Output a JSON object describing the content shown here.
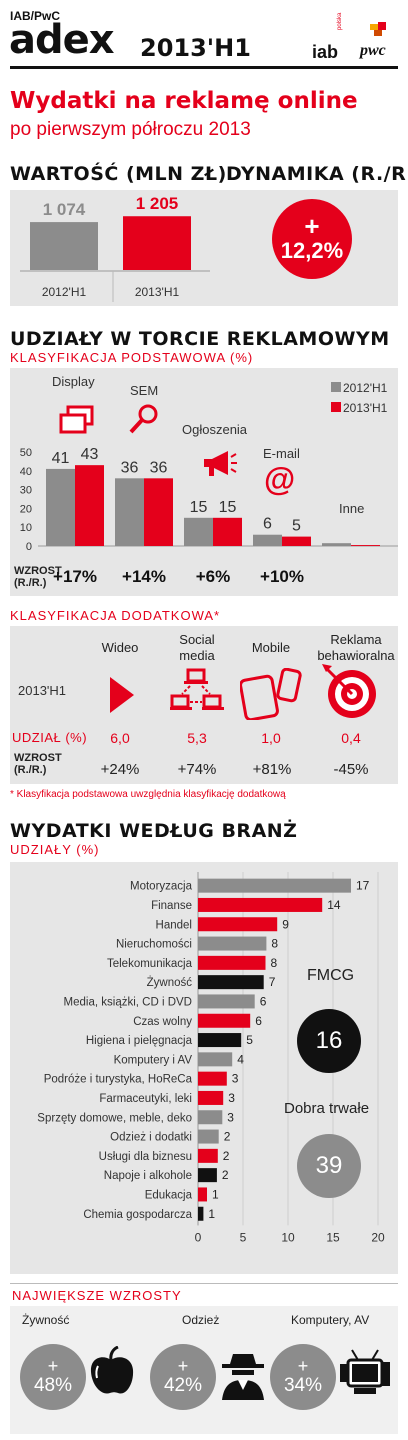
{
  "header": {
    "brand_small": "IAB/PwC",
    "brand_big": "adex",
    "period": "2013'H1",
    "logo_iab": "iab",
    "logo_iab_sub": "polska",
    "logo_pwc": "pwc"
  },
  "title": {
    "line1": "Wydatki na reklamę online",
    "line2": "po pierwszym półroczu 2013"
  },
  "value_section": {
    "title_value": "WARTOŚĆ (MLN ZŁ)",
    "title_dynamics": "DYNAMIKA (R./R.)",
    "bars": [
      {
        "label": "2012'H1",
        "value_text": "1 074",
        "value": 1074
      },
      {
        "label": "2013'H1",
        "value_text": "1 205",
        "value": 1205
      }
    ],
    "dynamics_plus": "+",
    "dynamics_value": "12,2%"
  },
  "shares_section": {
    "title": "UDZIAŁY W TORCIE REKLAMOWYM",
    "subtitle": "KLASYFIKACJA PODSTAWOWA (%)",
    "growth_label_1": "WZROST",
    "growth_label_2": "(R./R.)"
  },
  "additional_section": {
    "subtitle": "KLASYFIKACJA DODATKOWA*",
    "row_label_period": "2013'H1",
    "row_label_share": "UDZIAŁ (%)",
    "row_label_growth_1": "WZROST",
    "row_label_growth_2": "(R./R.)",
    "items": [
      {
        "name": "Wideo",
        "share": "6,0",
        "growth": "+24%"
      },
      {
        "name": "Social media",
        "share": "5,3",
        "growth": "+74%"
      },
      {
        "name": "Mobile",
        "share": "1,0",
        "growth": "+81%"
      },
      {
        "name": "Reklama behawioralna",
        "share": "0,4",
        "growth": "-45%"
      }
    ],
    "footnote": "* Klasyfikacja podstawowa uwzględnia klasyfikację dodatkową"
  },
  "industry_section": {
    "title": "WYDATKI WEDŁUG BRANŻ",
    "subtitle": "UDZIAŁY (%)",
    "fmcg_label": "FMCG",
    "fmcg_value": "16",
    "durables_label": "Dobra trwałe",
    "durables_value": "39"
  },
  "growth_section": {
    "title": "NAJWIĘKSZE WZROSTY",
    "items": [
      {
        "label": "Żywność",
        "plus": "+",
        "value": "48%"
      },
      {
        "label": "Odzież",
        "plus": "+",
        "value": "42%"
      },
      {
        "label": "Komputery, AV",
        "plus": "+",
        "value": "34%"
      }
    ]
  },
  "chart_data": [
    {
      "type": "bar",
      "title": "WARTOŚĆ (MLN ZŁ)",
      "categories": [
        "2012'H1",
        "2013'H1"
      ],
      "values": [
        1074,
        1205
      ],
      "colors": [
        "#8c8c8c",
        "#e4001b"
      ]
    },
    {
      "type": "bar",
      "title": "UDZIAŁY W TORCIE REKLAMOWYM",
      "subtitle": "KLASYFIKACJA PODSTAWOWA (%)",
      "categories": [
        "Display",
        "SEM",
        "Ogłoszenia",
        "E-mail",
        "Inne"
      ],
      "series": [
        {
          "name": "2012'H1",
          "values": [
            41,
            36,
            15,
            6,
            1.5
          ],
          "color": "#8c8c8c"
        },
        {
          "name": "2013'H1",
          "values": [
            43,
            36,
            15,
            5,
            0.5
          ],
          "color": "#e4001b"
        }
      ],
      "value_labels": [
        [
          "41",
          "43"
        ],
        [
          "36",
          "36"
        ],
        [
          "15",
          "15"
        ],
        [
          "6",
          "5"
        ],
        [
          "",
          ""
        ]
      ],
      "growth": [
        "+17%",
        "+14%",
        "+6%",
        "+10%",
        ""
      ],
      "ylim": [
        0,
        50
      ],
      "yticks": [
        0,
        10,
        20,
        30,
        40,
        50
      ],
      "legend": "top-right"
    },
    {
      "type": "bar",
      "orientation": "horizontal",
      "title": "WYDATKI WEDŁUG BRANŻ",
      "subtitle": "UDZIAŁY (%)",
      "categories": [
        "Motoryzacja",
        "Finanse",
        "Handel",
        "Nieruchomości",
        "Telekomunikacja",
        "Żywność",
        "Media, książki, CD i DVD",
        "Czas wolny",
        "Higiena i pielęgnacja",
        "Komputery i AV",
        "Podróże i turystyka, HoReCa",
        "Farmaceutyki, leki",
        "Sprzęty domowe, meble, deko",
        "Odzież i dodatki",
        "Usługi dla biznesu",
        "Napoje i alkohole",
        "Edukacja",
        "Chemia gospodarcza"
      ],
      "values": [
        17,
        14,
        9,
        8,
        8,
        7,
        6,
        6,
        5,
        4,
        3,
        3,
        3,
        2,
        2,
        2,
        1,
        1
      ],
      "bar_values": [
        17,
        13.8,
        8.8,
        7.6,
        7.5,
        7.3,
        6.3,
        5.8,
        4.8,
        3.8,
        3.2,
        2.8,
        2.7,
        2.3,
        2.2,
        2.1,
        1.0,
        0.6
      ],
      "colors": [
        "#8c8c8c",
        "#e4001b",
        "#e4001b",
        "#8c8c8c",
        "#e4001b",
        "#111111",
        "#8c8c8c",
        "#e4001b",
        "#111111",
        "#8c8c8c",
        "#e4001b",
        "#e4001b",
        "#8c8c8c",
        "#8c8c8c",
        "#e4001b",
        "#111111",
        "#e4001b",
        "#111111"
      ],
      "xlim": [
        0,
        20
      ],
      "xticks": [
        0,
        5,
        10,
        15,
        20
      ]
    }
  ]
}
